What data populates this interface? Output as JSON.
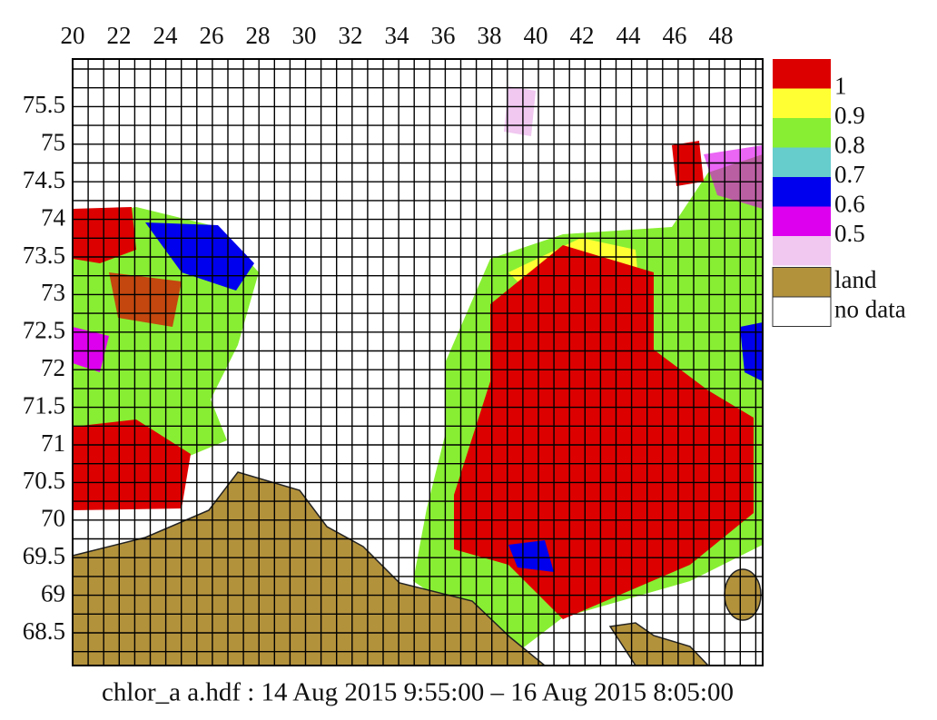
{
  "map": {
    "longitude_ticks": [
      20,
      22,
      24,
      26,
      28,
      30,
      32,
      34,
      36,
      38,
      40,
      42,
      44,
      46,
      48
    ],
    "latitude_ticks": [
      75.5,
      75,
      74.5,
      74,
      73.5,
      73,
      72.5,
      72,
      71.5,
      71,
      70.5,
      70,
      69.5,
      69,
      68.5
    ],
    "color_scale": {
      "colors": [
        "#dd0000",
        "#ffff33",
        "#88ee33",
        "#66cccc",
        "#0000ee",
        "#dd00ee",
        "#f0c8f0"
      ],
      "labels": [
        1,
        0.9,
        0.8,
        0.7,
        0.6,
        0.5
      ]
    },
    "legend": [
      {
        "label": "land",
        "color": "#b3923c"
      },
      {
        "label": "no data",
        "color": "#ffffff"
      }
    ],
    "caption": "chlor_a a.hdf : 14 Aug 2015  9:55:00 – 16 Aug 2015  8:05:00"
  }
}
